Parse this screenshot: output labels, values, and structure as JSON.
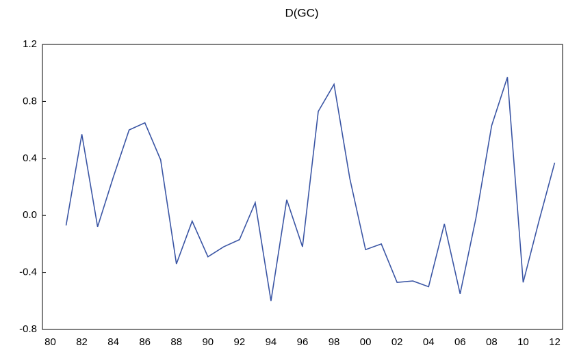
{
  "chart_data": {
    "type": "line",
    "title": "D(GC)",
    "categories": [
      "80",
      null,
      "82",
      null,
      "84",
      null,
      "86",
      null,
      "88",
      null,
      "90",
      null,
      "92",
      null,
      "94",
      null,
      "96",
      null,
      "98",
      null,
      "00",
      null,
      "02",
      null,
      "04",
      null,
      "06",
      null,
      "08",
      null,
      "10",
      null,
      "12"
    ],
    "values": [
      null,
      -0.07,
      0.57,
      -0.08,
      0.27,
      0.6,
      0.65,
      0.39,
      -0.34,
      -0.04,
      -0.29,
      -0.22,
      -0.17,
      0.09,
      -0.6,
      0.11,
      -0.22,
      0.73,
      0.92,
      0.26,
      -0.24,
      -0.2,
      -0.47,
      -0.46,
      -0.5,
      -0.06,
      -0.55,
      -0.02,
      0.63,
      0.97,
      -0.47,
      -0.04,
      0.37
    ],
    "color": "#3a55a4",
    "ylim": [
      -0.8,
      1.2
    ],
    "yticks": [
      -0.8,
      -0.4,
      {
        "value": 0,
        "label": "0.0"
      },
      0.4,
      0.8,
      1.2
    ],
    "grid": false
  }
}
